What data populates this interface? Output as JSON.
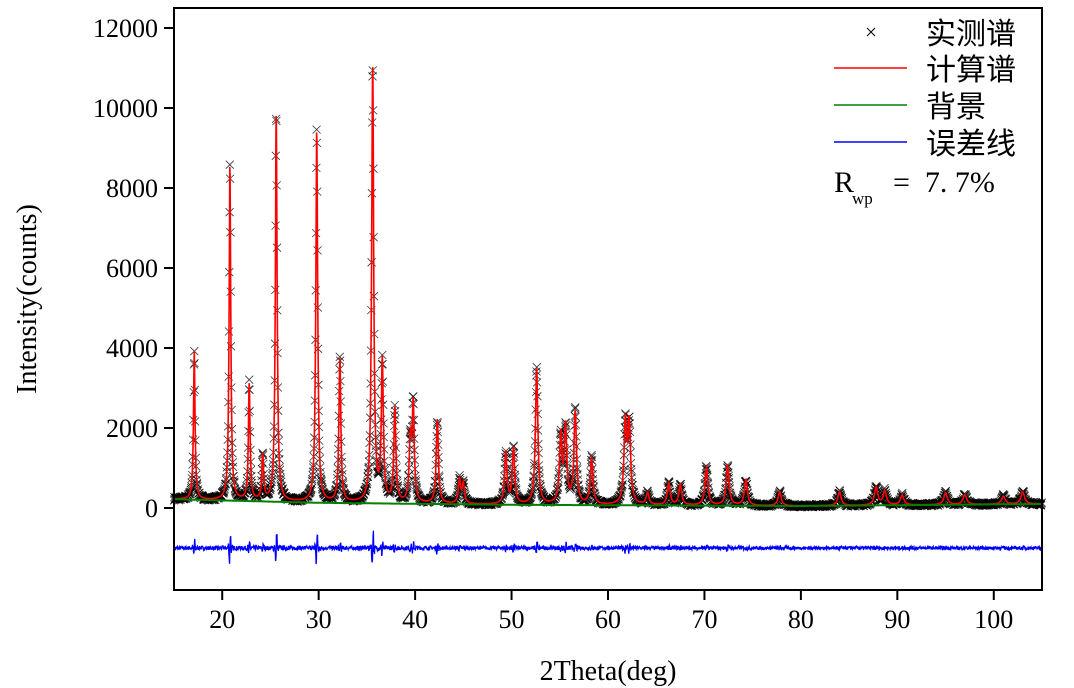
{
  "chart_data": {
    "type": "scatter",
    "title": "",
    "xlabel": "2Theta(deg)",
    "ylabel": "Intensity(counts)",
    "xlim": [
      15,
      105
    ],
    "ylim": [
      -2050,
      12500
    ],
    "xticks": [
      20,
      30,
      40,
      50,
      60,
      70,
      80,
      90,
      100
    ],
    "yticks": [
      0,
      2000,
      4000,
      6000,
      8000,
      10000,
      12000
    ],
    "grid": false,
    "legend_position": "top-right",
    "legend": [
      {
        "label": "实测谱",
        "marker": "x",
        "color": "#000000"
      },
      {
        "label": "计算谱",
        "marker": "line",
        "color": "#ff0000"
      },
      {
        "label": "背景",
        "marker": "line",
        "color": "#008000"
      },
      {
        "label": "误差线",
        "marker": "line",
        "color": "#0000ff"
      }
    ],
    "annotation": {
      "symbol": "R",
      "subscript": "wp",
      "text": "=  7. 7%"
    },
    "difference_offset": -1000,
    "background": {
      "x": [
        15,
        30,
        50,
        80,
        105
      ],
      "y": [
        220,
        130,
        80,
        50,
        100
      ]
    },
    "peaks": [
      [
        17.1,
        3700
      ],
      [
        20.8,
        8400
      ],
      [
        22.8,
        2900
      ],
      [
        24.2,
        1150
      ],
      [
        25.6,
        9700
      ],
      [
        29.8,
        9300
      ],
      [
        32.2,
        3600
      ],
      [
        35.6,
        10900
      ],
      [
        36.6,
        3500
      ],
      [
        37.9,
        2350
      ],
      [
        39.5,
        1500
      ],
      [
        39.8,
        2400
      ],
      [
        42.3,
        2100
      ],
      [
        44.6,
        600
      ],
      [
        45.0,
        500
      ],
      [
        49.4,
        1300
      ],
      [
        50.2,
        1400
      ],
      [
        52.6,
        3400
      ],
      [
        55.1,
        1700
      ],
      [
        55.6,
        1900
      ],
      [
        56.6,
        2300
      ],
      [
        58.3,
        1150
      ],
      [
        61.8,
        2000
      ],
      [
        62.2,
        1950
      ],
      [
        64.1,
        300
      ],
      [
        66.3,
        550
      ],
      [
        67.5,
        520
      ],
      [
        70.2,
        950
      ],
      [
        72.4,
        1000
      ],
      [
        74.3,
        650
      ],
      [
        77.8,
        350
      ],
      [
        84.0,
        350
      ],
      [
        87.8,
        450
      ],
      [
        88.7,
        350
      ],
      [
        90.5,
        250
      ],
      [
        95.0,
        300
      ],
      [
        97.0,
        250
      ],
      [
        101.0,
        200
      ],
      [
        103.0,
        300
      ]
    ]
  }
}
